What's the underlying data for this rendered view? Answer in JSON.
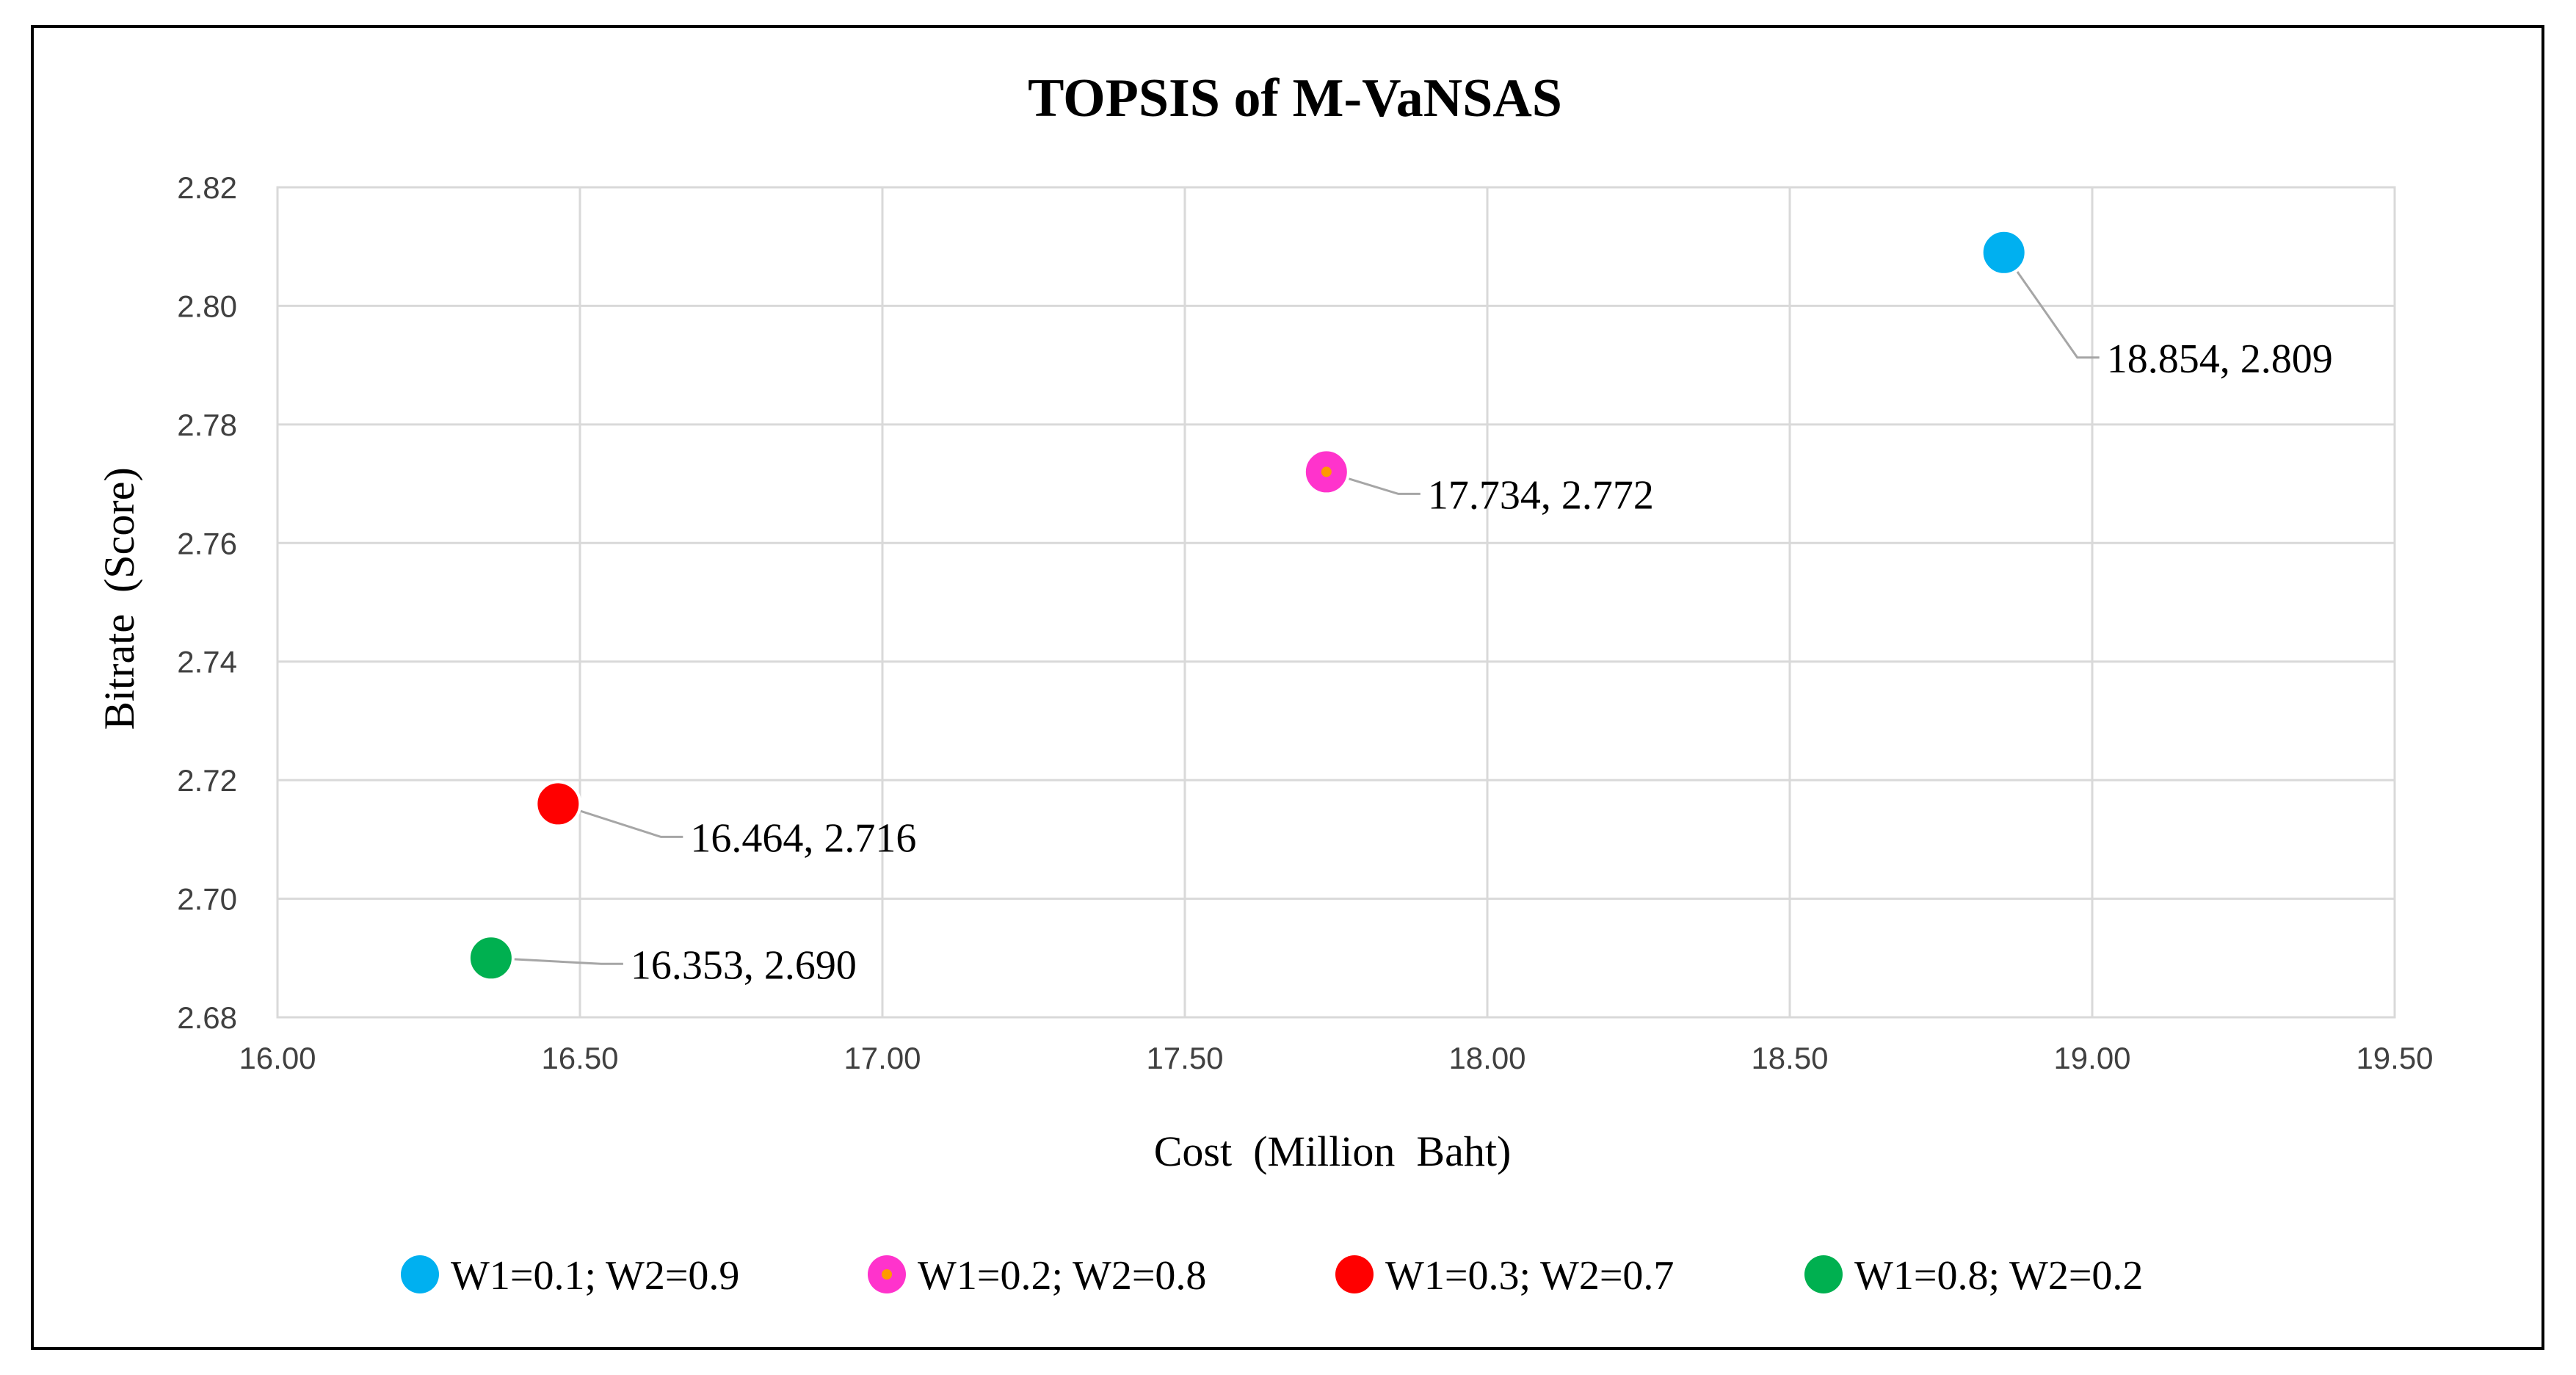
{
  "chart_data": {
    "type": "scatter",
    "title": "TOPSIS of M-VaNSAS",
    "xlabel": "Cost  (Million  Baht)",
    "ylabel": "Bitrate  (Score)",
    "xlim": [
      16.0,
      19.5
    ],
    "ylim": [
      2.68,
      2.82
    ],
    "x_ticks": [
      "16.00",
      "16.50",
      "17.00",
      "17.50",
      "18.00",
      "18.50",
      "19.00",
      "19.50"
    ],
    "y_ticks": [
      "2.68",
      "2.70",
      "2.72",
      "2.74",
      "2.76",
      "2.78",
      "2.80",
      "2.82"
    ],
    "grid": true,
    "legend_position": "bottom",
    "series": [
      {
        "name": "W1=0.1; W2=0.9",
        "color": "#00b0f0",
        "x": 18.854,
        "y": 2.809,
        "label": "18.854, 2.809"
      },
      {
        "name": "W1=0.2; W2=0.8",
        "color": "#ff33cc",
        "x": 17.734,
        "y": 2.772,
        "label": "17.734, 2.772"
      },
      {
        "name": "W1=0.3; W2=0.7",
        "color": "#ff0000",
        "x": 16.464,
        "y": 2.716,
        "label": "16.464, 2.716"
      },
      {
        "name": "W1=0.8; W2=0.2",
        "color": "#00b050",
        "x": 16.353,
        "y": 2.69,
        "label": "16.353, 2.690"
      }
    ]
  }
}
